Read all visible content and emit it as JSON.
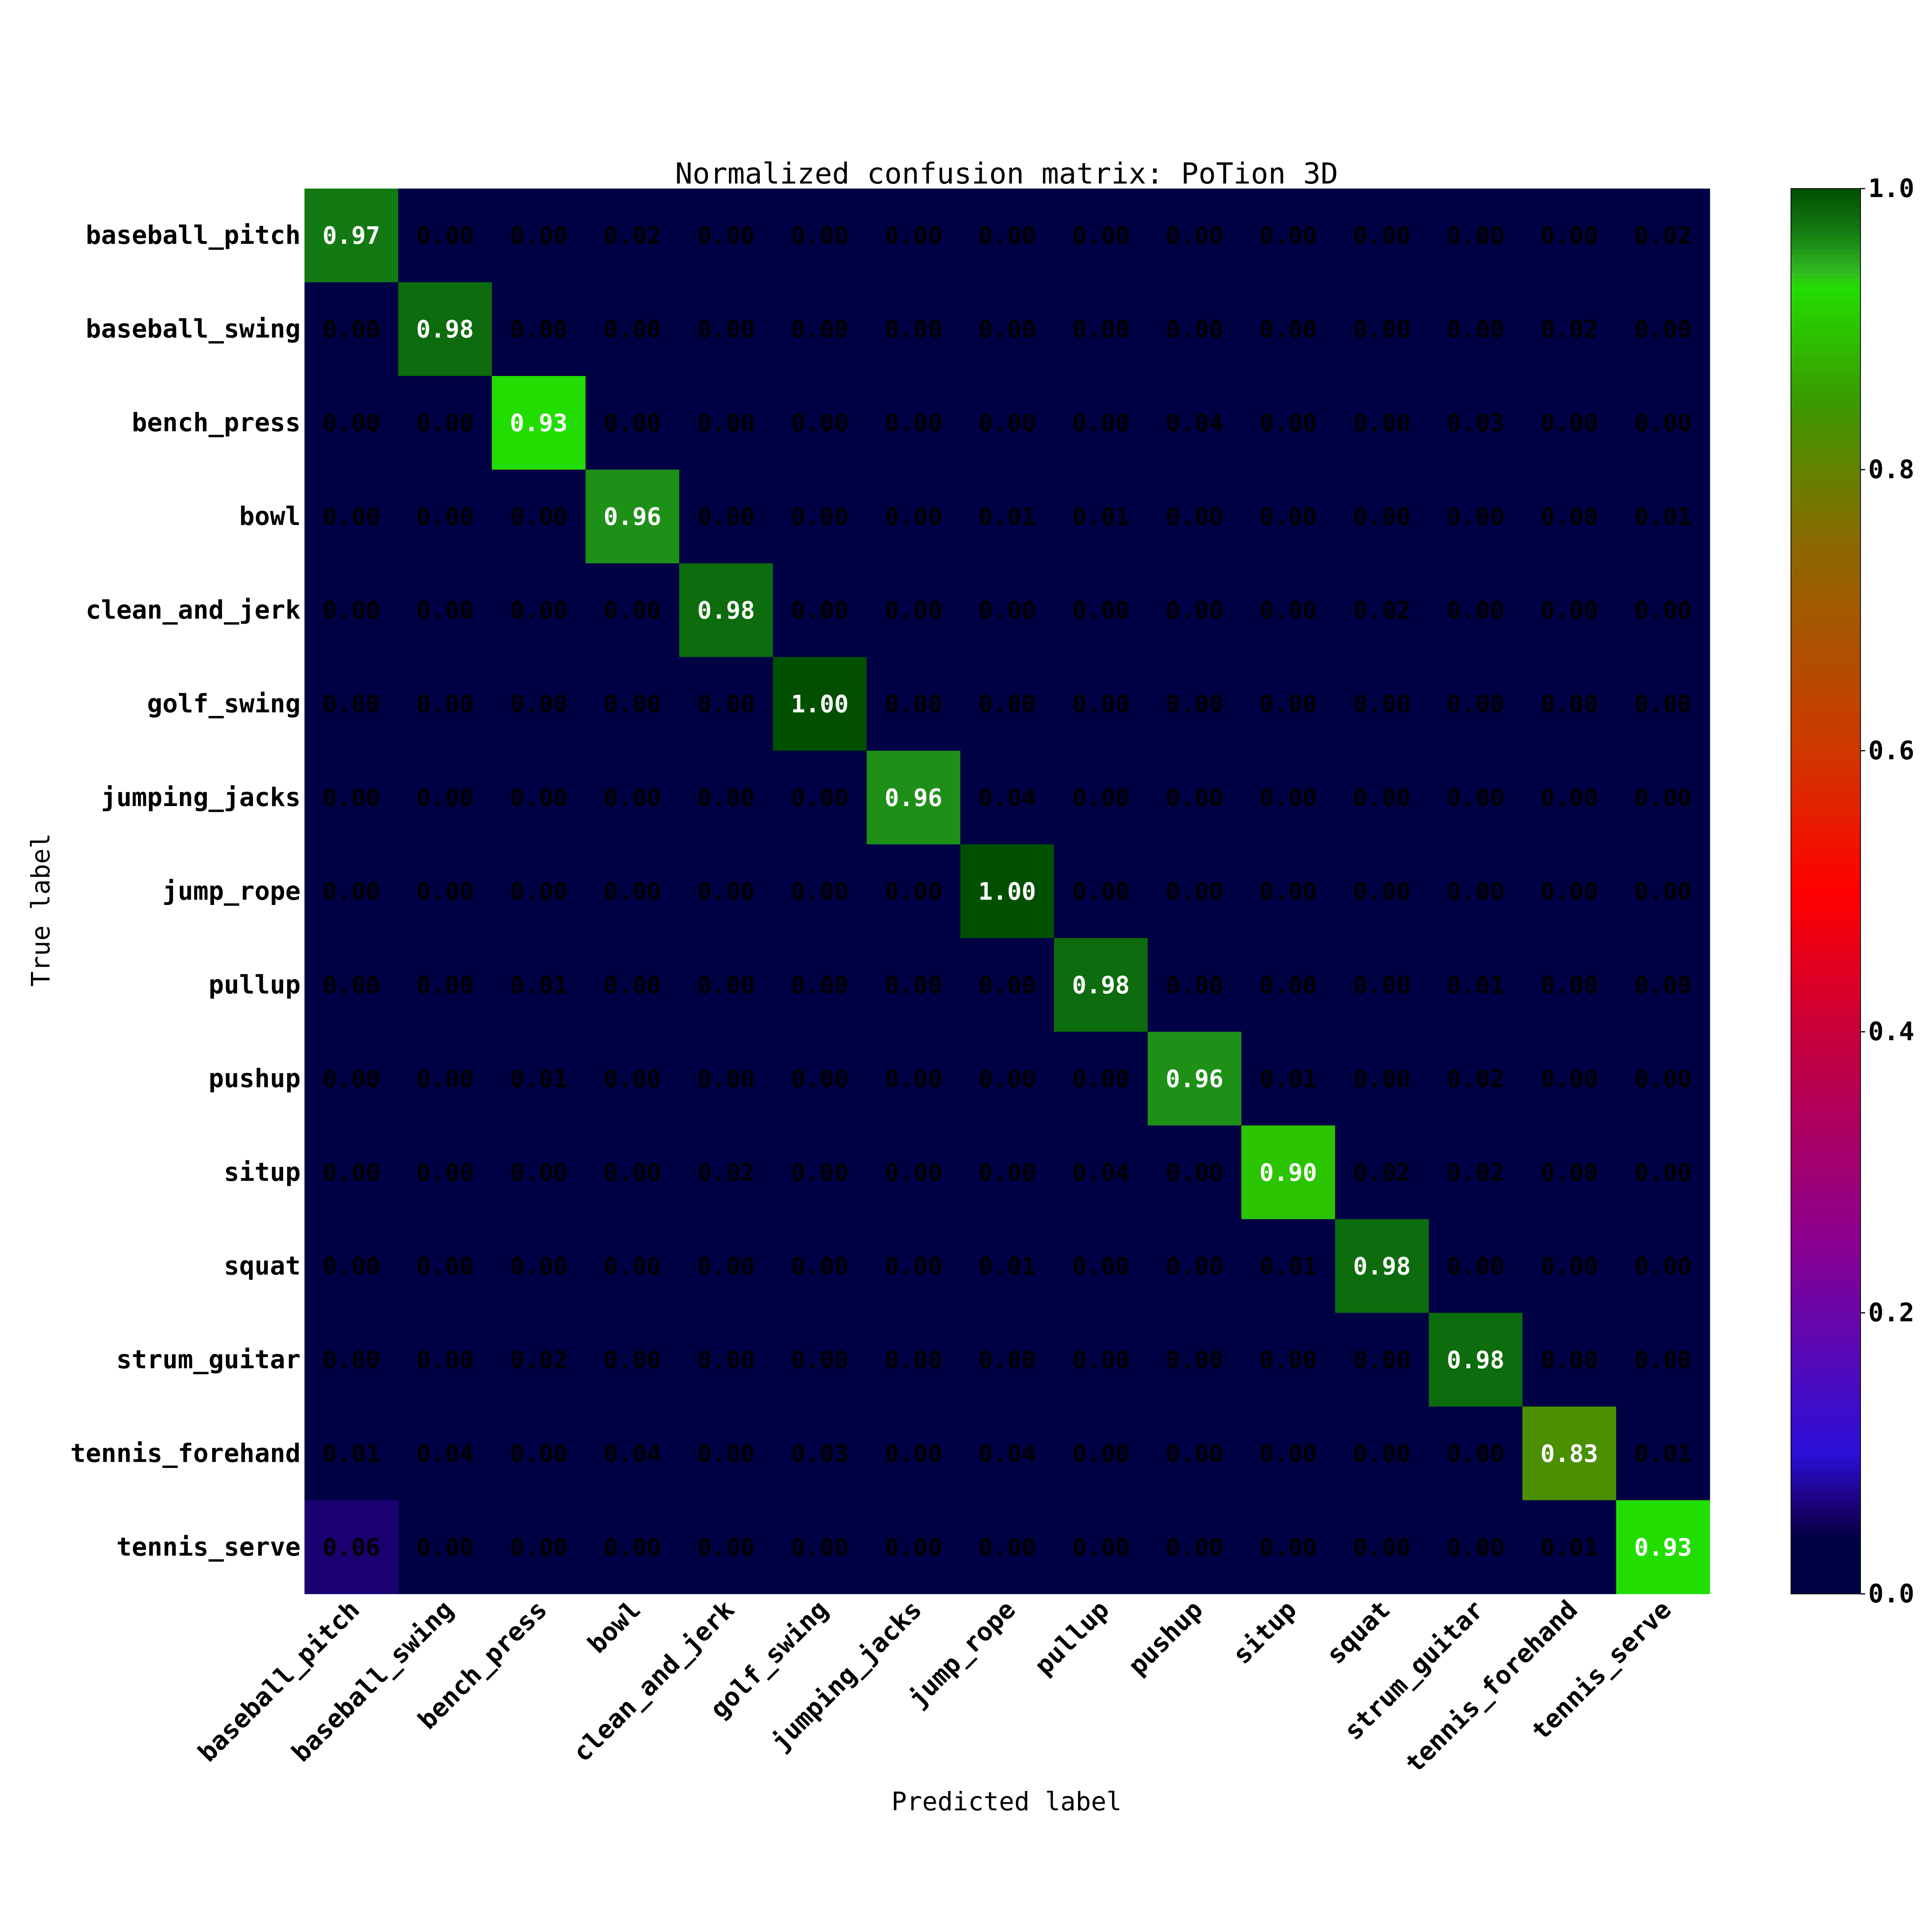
{
  "chart_data": {
    "type": "heatmap",
    "title": "Normalized confusion matrix: PoTion 3D",
    "xlabel": "Predicted label",
    "ylabel": "True label",
    "categories": [
      "baseball_pitch",
      "baseball_swing",
      "bench_press",
      "bowl",
      "clean_and_jerk",
      "golf_swing",
      "jumping_jacks",
      "jump_rope",
      "pullup",
      "pushup",
      "situp",
      "squat",
      "strum_guitar",
      "tennis_forehand",
      "tennis_serve"
    ],
    "matrix": [
      [
        0.97,
        0.0,
        0.0,
        0.02,
        0.0,
        0.0,
        0.0,
        0.0,
        0.0,
        0.0,
        0.0,
        0.0,
        0.0,
        0.0,
        0.02
      ],
      [
        0.0,
        0.98,
        0.0,
        0.0,
        0.0,
        0.0,
        0.0,
        0.0,
        0.0,
        0.0,
        0.0,
        0.0,
        0.0,
        0.02,
        0.0
      ],
      [
        0.0,
        0.0,
        0.93,
        0.0,
        0.0,
        0.0,
        0.0,
        0.0,
        0.0,
        0.04,
        0.0,
        0.0,
        0.03,
        0.0,
        0.0
      ],
      [
        0.0,
        0.0,
        0.0,
        0.96,
        0.0,
        0.0,
        0.0,
        0.01,
        0.01,
        0.0,
        0.0,
        0.0,
        0.0,
        0.0,
        0.01
      ],
      [
        0.0,
        0.0,
        0.0,
        0.0,
        0.98,
        0.0,
        0.0,
        0.0,
        0.0,
        0.0,
        0.0,
        0.02,
        0.0,
        0.0,
        0.0
      ],
      [
        0.0,
        0.0,
        0.0,
        0.0,
        0.0,
        1.0,
        0.0,
        0.0,
        0.0,
        0.0,
        0.0,
        0.0,
        0.0,
        0.0,
        0.0
      ],
      [
        0.0,
        0.0,
        0.0,
        0.0,
        0.0,
        0.0,
        0.96,
        0.04,
        0.0,
        0.0,
        0.0,
        0.0,
        0.0,
        0.0,
        0.0
      ],
      [
        0.0,
        0.0,
        0.0,
        0.0,
        0.0,
        0.0,
        0.0,
        1.0,
        0.0,
        0.0,
        0.0,
        0.0,
        0.0,
        0.0,
        0.0
      ],
      [
        0.0,
        0.0,
        0.01,
        0.0,
        0.0,
        0.0,
        0.0,
        0.0,
        0.98,
        0.0,
        0.0,
        0.0,
        0.01,
        0.0,
        0.0
      ],
      [
        0.0,
        0.0,
        0.01,
        0.0,
        0.0,
        0.0,
        0.0,
        0.0,
        0.0,
        0.96,
        0.01,
        0.0,
        0.02,
        0.0,
        0.0
      ],
      [
        0.0,
        0.0,
        0.0,
        0.0,
        0.02,
        0.0,
        0.0,
        0.0,
        0.04,
        0.0,
        0.9,
        0.02,
        0.02,
        0.0,
        0.0
      ],
      [
        0.0,
        0.0,
        0.0,
        0.0,
        0.0,
        0.0,
        0.0,
        0.01,
        0.0,
        0.0,
        0.01,
        0.98,
        0.0,
        0.0,
        0.0
      ],
      [
        0.0,
        0.0,
        0.02,
        0.0,
        0.0,
        0.0,
        0.0,
        0.0,
        0.0,
        0.0,
        0.0,
        0.0,
        0.98,
        0.0,
        0.0
      ],
      [
        0.01,
        0.04,
        0.0,
        0.04,
        0.0,
        0.03,
        0.0,
        0.04,
        0.0,
        0.0,
        0.0,
        0.0,
        0.0,
        0.83,
        0.01
      ],
      [
        0.06,
        0.0,
        0.0,
        0.0,
        0.0,
        0.0,
        0.0,
        0.0,
        0.0,
        0.0,
        0.0,
        0.0,
        0.0,
        0.01,
        0.93
      ]
    ],
    "value_range": [
      0,
      1
    ],
    "colorbar": {
      "ticks": [
        "0.0",
        "0.2",
        "0.4",
        "0.6",
        "0.8",
        "1.0"
      ],
      "colormap": [
        {
          "v": 0.0,
          "color": "#000044"
        },
        {
          "v": 0.04,
          "color": "#000044"
        },
        {
          "v": 0.06,
          "color": "#1a0070"
        },
        {
          "v": 0.1,
          "color": "#2a10d8"
        },
        {
          "v": 0.25,
          "color": "#8a0090"
        },
        {
          "v": 0.4,
          "color": "#c8003a"
        },
        {
          "v": 0.5,
          "color": "#ff0000"
        },
        {
          "v": 0.6,
          "color": "#d03800"
        },
        {
          "v": 0.75,
          "color": "#8a6a00"
        },
        {
          "v": 0.85,
          "color": "#3a9a00"
        },
        {
          "v": 0.93,
          "color": "#22dd00"
        },
        {
          "v": 0.94,
          "color": "#33bb22"
        },
        {
          "v": 0.97,
          "color": "#137a13"
        },
        {
          "v": 1.0,
          "color": "#005000"
        }
      ]
    },
    "text_colors": {
      "high": "#ffffff",
      "low": "#000000"
    },
    "grid": false
  }
}
